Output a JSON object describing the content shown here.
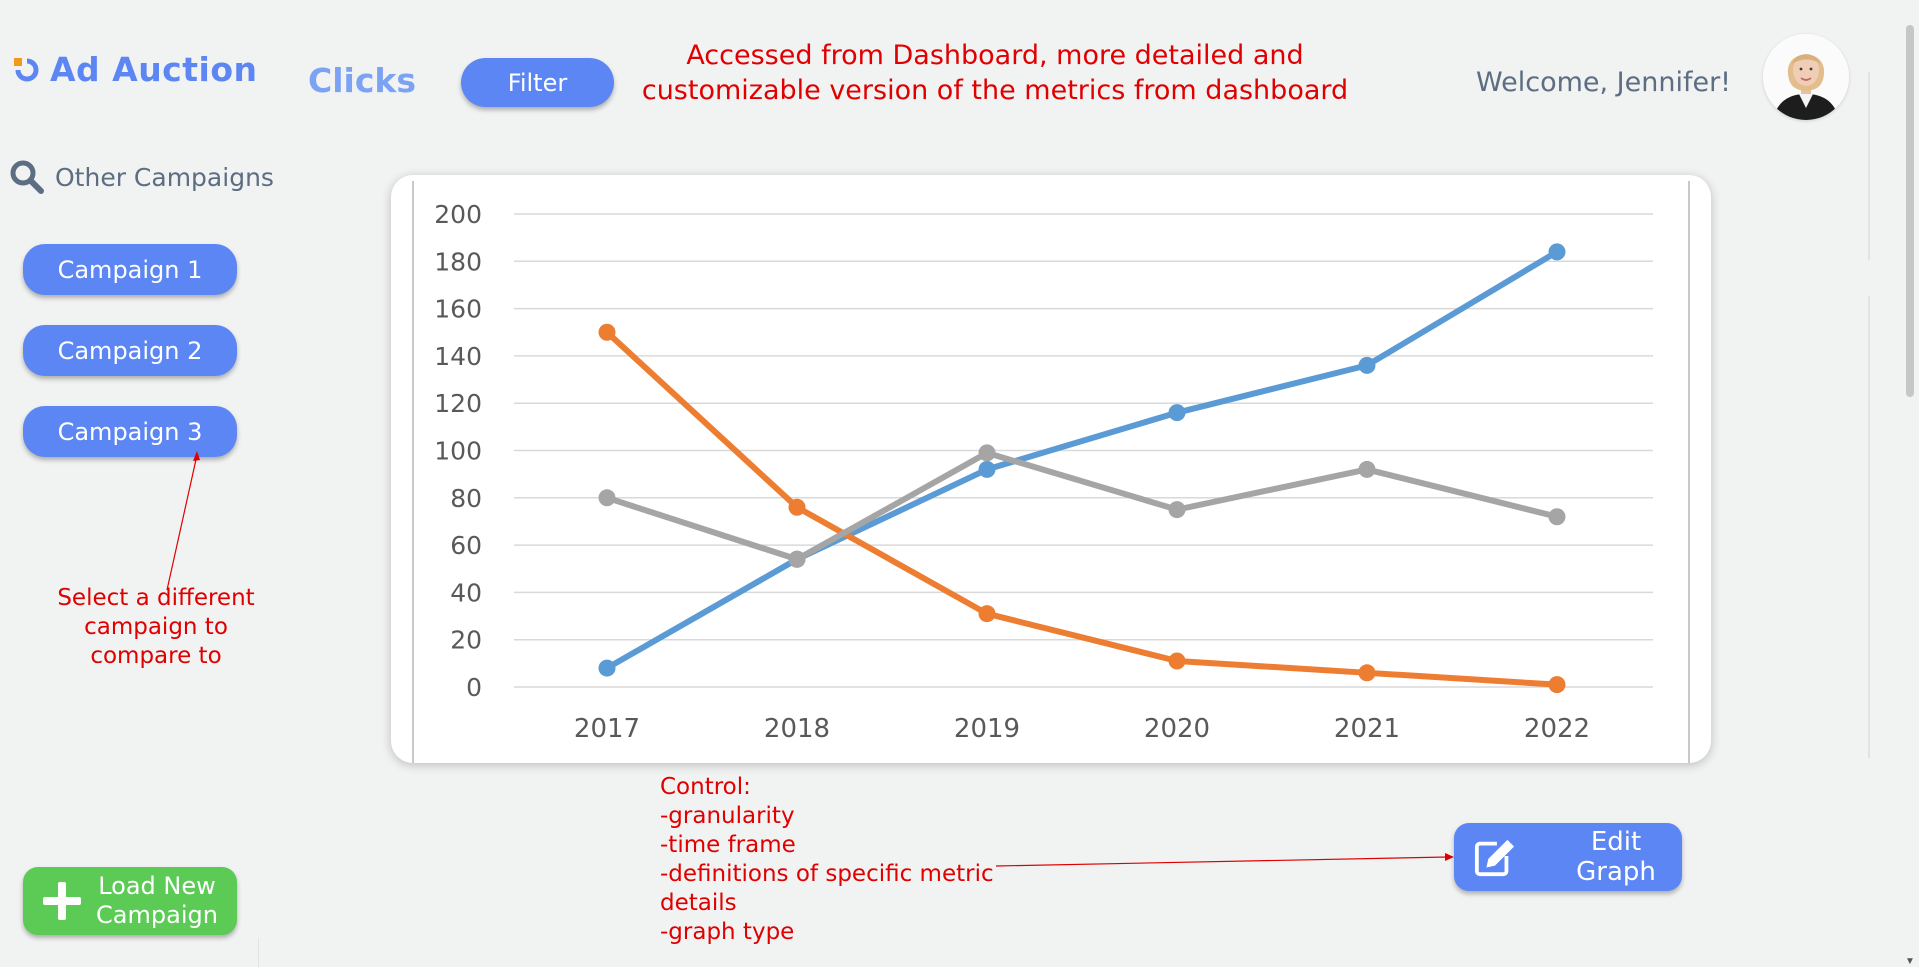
{
  "app": {
    "brand": "Ad Auction",
    "brand_icon": "brand-logo-icon"
  },
  "header": {
    "page_title": "Clicks",
    "filter_label": "Filter",
    "annotation_lines": [
      "Accessed from Dashboard, more detailed and",
      "customizable version of the metrics from dashboard"
    ],
    "welcome": "Welcome, Jennifer!",
    "avatar_icon": "user-avatar"
  },
  "sidebar": {
    "search_label": "Other Campaigns",
    "search_icon": "search-icon",
    "campaigns": [
      {
        "label": "Campaign 1"
      },
      {
        "label": "Campaign 2"
      },
      {
        "label": "Campaign 3"
      }
    ],
    "annotation_lines": [
      "Select a different",
      "campaign to",
      "compare to"
    ],
    "load_button_lines": [
      "Load New",
      "Campaign"
    ]
  },
  "controls": {
    "annotation_lines": [
      "Control:",
      "-granularity",
      "-time frame",
      "-definitions of specific metric",
      "details",
      "-graph type"
    ],
    "edit_label": "Edit Graph",
    "edit_icon": "edit-icon"
  },
  "colors": {
    "accent": "#5b86f4",
    "green": "#5ccb56",
    "annotation": "#e00000",
    "series_blue": "#5b9bd5",
    "series_orange": "#ed7d31",
    "series_gray": "#a5a5a5"
  },
  "chart_data": {
    "type": "line",
    "x": [
      "2017",
      "2018",
      "2019",
      "2020",
      "2021",
      "2022"
    ],
    "ylim": [
      0,
      200
    ],
    "yticks": [
      0,
      20,
      40,
      60,
      80,
      100,
      120,
      140,
      160,
      180,
      200
    ],
    "grid": true,
    "legend": "none",
    "series": [
      {
        "values": [
          8,
          54,
          92,
          116,
          136,
          184
        ],
        "color": "#5b9bd5"
      },
      {
        "values": [
          150,
          76,
          31,
          11,
          6,
          1
        ],
        "color": "#ed7d31"
      },
      {
        "values": [
          80,
          54,
          99,
          75,
          92,
          72
        ],
        "color": "#a5a5a5"
      }
    ]
  }
}
